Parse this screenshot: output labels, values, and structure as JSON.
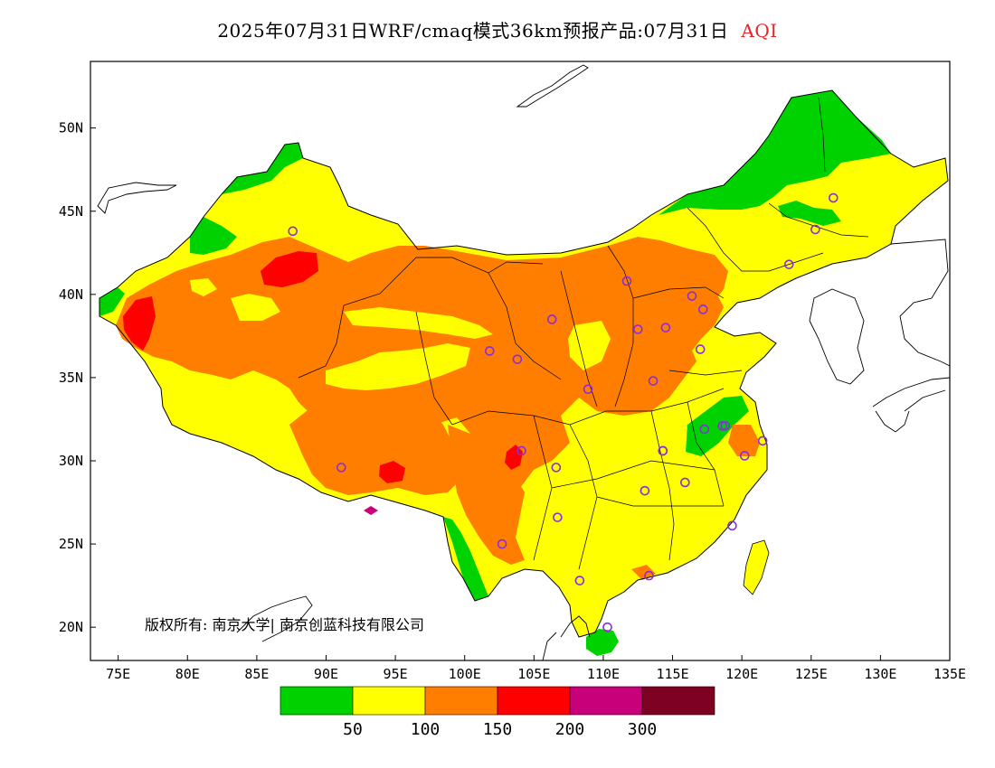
{
  "title": {
    "main": "2025年07月31日WRF/cmaq模式36km预报产品:07月31日",
    "variable": "AQI",
    "variable_color": "#e8242a"
  },
  "map": {
    "lon_ticks": [
      "75E",
      "80E",
      "85E",
      "90E",
      "95E",
      "100E",
      "105E",
      "110E",
      "115E",
      "120E",
      "125E",
      "130E",
      "135E"
    ],
    "lat_ticks": [
      "50N",
      "45N",
      "40N",
      "35N",
      "30N",
      "25N",
      "20N"
    ],
    "lon_range": [
      73,
      135
    ],
    "lat_range": [
      18,
      54
    ],
    "copyright": "版权所有: 南京大学| 南京创蓝科技有限公司",
    "station_marker_color": "#8a2be2",
    "stations": [
      [
        87.6,
        43.8
      ],
      [
        101.8,
        36.6
      ],
      [
        103.8,
        36.1
      ],
      [
        106.3,
        38.5
      ],
      [
        104.1,
        30.6
      ],
      [
        106.6,
        29.6
      ],
      [
        106.7,
        26.6
      ],
      [
        102.7,
        25.0
      ],
      [
        91.1,
        29.6
      ],
      [
        108.9,
        34.3
      ],
      [
        111.7,
        40.8
      ],
      [
        112.5,
        37.9
      ],
      [
        114.5,
        38.0
      ],
      [
        116.4,
        39.9
      ],
      [
        117.2,
        39.1
      ],
      [
        113.6,
        34.8
      ],
      [
        117.0,
        36.7
      ],
      [
        114.3,
        30.6
      ],
      [
        117.3,
        31.9
      ],
      [
        118.8,
        32.1
      ],
      [
        121.5,
        31.2
      ],
      [
        120.2,
        30.3
      ],
      [
        115.9,
        28.7
      ],
      [
        113.0,
        28.2
      ],
      [
        119.3,
        26.1
      ],
      [
        113.3,
        23.1
      ],
      [
        108.3,
        22.8
      ],
      [
        110.3,
        20.0
      ],
      [
        125.3,
        43.9
      ],
      [
        126.6,
        45.8
      ],
      [
        123.4,
        41.8
      ],
      [
        118.6,
        32.1
      ],
      [
        114.3,
        30.6
      ]
    ]
  },
  "legend": {
    "colors": [
      "#00d200",
      "#ffff00",
      "#ff7e00",
      "#ff0000",
      "#c8007a",
      "#7e0023"
    ],
    "labels": [
      "50",
      "100",
      "150",
      "200",
      "300"
    ],
    "categories": [
      "0-50",
      "50-100",
      "100-150",
      "150-200",
      "200-300",
      ">300"
    ]
  }
}
